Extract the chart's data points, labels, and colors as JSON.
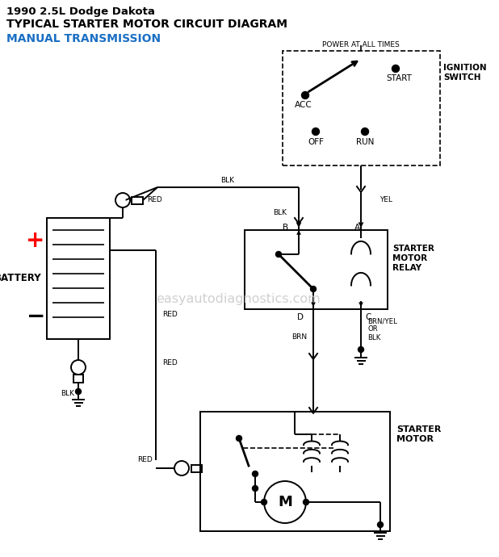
{
  "title_line1": "1990 2.5L Dodge Dakota",
  "title_line2": "TYPICAL STARTER MOTOR CIRCUIT DIAGRAM",
  "title_line3": "MANUAL TRANSMISSION",
  "watermark": "easyautodiagnostics.com",
  "bg_color": "#ffffff",
  "line_color": "#000000",
  "title_color": "#000000",
  "subtitle_color": "#1a6fc4",
  "fig_width": 6.18,
  "fig_height": 6.9,
  "dpi": 100
}
